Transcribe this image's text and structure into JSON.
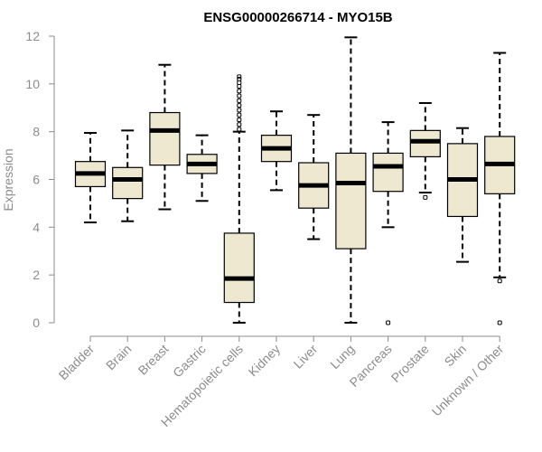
{
  "chart_data": {
    "type": "boxplot",
    "title": "ENSG00000266714 - MYO15B",
    "ylabel": "Expression",
    "xlabel": "",
    "ylim": [
      0,
      12
    ],
    "yticks": [
      0,
      2,
      4,
      6,
      8,
      10,
      12
    ],
    "grid": false,
    "colors": {
      "box_fill": "#efe8d0",
      "box_stroke": "#000000",
      "axis": "#8c8c8c"
    },
    "categories": [
      "Bladder",
      "Brain",
      "Breast",
      "Gastric",
      "Hematopoietic cells",
      "Kidney",
      "Liver",
      "Lung",
      "Pancreas",
      "Prostate",
      "Skin",
      "Unknown / Other"
    ],
    "boxes": [
      {
        "min": 4.2,
        "q1": 5.7,
        "median": 6.25,
        "q3": 6.75,
        "max": 7.95,
        "outliers": []
      },
      {
        "min": 4.25,
        "q1": 5.2,
        "median": 6.0,
        "q3": 6.5,
        "max": 8.05,
        "outliers": []
      },
      {
        "min": 4.75,
        "q1": 6.6,
        "median": 8.05,
        "q3": 8.8,
        "max": 10.8,
        "outliers": []
      },
      {
        "min": 5.1,
        "q1": 6.25,
        "median": 6.65,
        "q3": 7.05,
        "max": 7.85,
        "outliers": []
      },
      {
        "min": 0.0,
        "q1": 0.85,
        "median": 1.85,
        "q3": 3.75,
        "max": 8.0,
        "outliers": [
          8.1,
          8.3,
          8.5,
          8.7,
          8.9,
          9.1,
          9.3,
          9.5,
          9.7,
          9.9,
          10.05,
          10.2,
          10.3
        ]
      },
      {
        "min": 5.55,
        "q1": 6.75,
        "median": 7.3,
        "q3": 7.85,
        "max": 8.85,
        "outliers": []
      },
      {
        "min": 3.5,
        "q1": 4.8,
        "median": 5.75,
        "q3": 6.7,
        "max": 8.7,
        "outliers": []
      },
      {
        "min": 0.0,
        "q1": 3.1,
        "median": 5.85,
        "q3": 7.1,
        "max": 11.95,
        "outliers": []
      },
      {
        "min": 4.0,
        "q1": 5.5,
        "median": 6.55,
        "q3": 7.1,
        "max": 8.4,
        "outliers": [
          0.0
        ]
      },
      {
        "min": 5.45,
        "q1": 6.95,
        "median": 7.6,
        "q3": 8.05,
        "max": 9.2,
        "outliers": [
          5.25
        ]
      },
      {
        "min": 2.55,
        "q1": 4.45,
        "median": 6.0,
        "q3": 7.5,
        "max": 8.15,
        "outliers": []
      },
      {
        "min": 1.9,
        "q1": 5.4,
        "median": 6.65,
        "q3": 7.8,
        "max": 11.3,
        "outliers": [
          1.75,
          0.0
        ]
      }
    ]
  }
}
